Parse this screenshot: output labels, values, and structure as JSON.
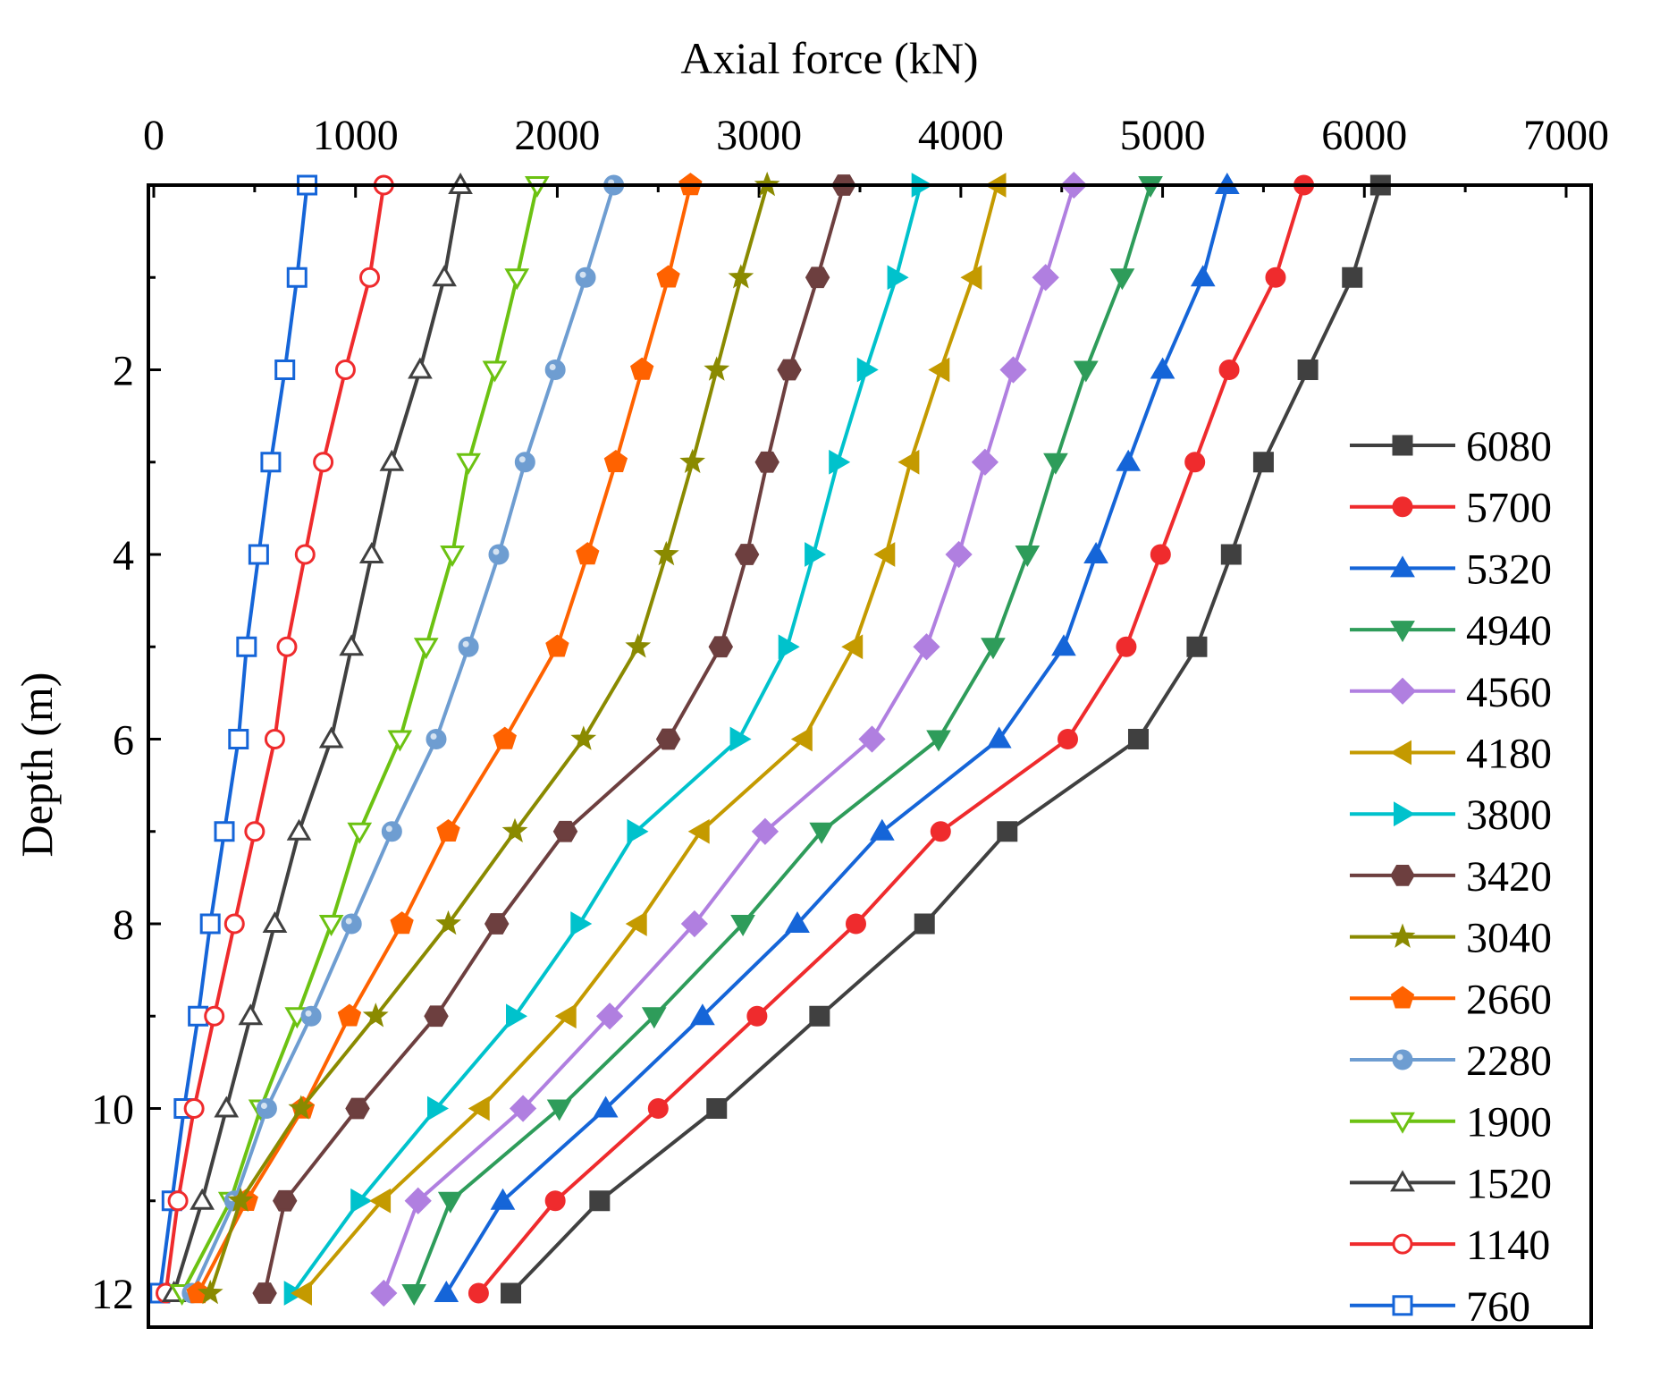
{
  "chart_data": {
    "type": "line",
    "title": "",
    "xlabel": "Axial force (kN)",
    "ylabel": "Depth (m)",
    "xlim": [
      0,
      7000
    ],
    "ylim": [
      0,
      12.5
    ],
    "x_axis_position": "top",
    "y_axis_inverted": true,
    "xticks": [
      "0",
      "1000",
      "2000",
      "3000",
      "4000",
      "5000",
      "6000",
      "7000"
    ],
    "yticks": [
      "2",
      "4",
      "6",
      "8",
      "10",
      "12"
    ],
    "ytick_values": [
      2,
      4,
      6,
      8,
      10,
      12
    ],
    "legend_position": "right",
    "depth": [
      0,
      1,
      2,
      3,
      4,
      5,
      6,
      7,
      8,
      9,
      10,
      11,
      12
    ],
    "series": [
      {
        "name": "6080",
        "color": "#404040",
        "marker": "square",
        "filled": true,
        "values": [
          6080,
          5940,
          5720,
          5500,
          5340,
          5170,
          4880,
          4230,
          3820,
          3300,
          2790,
          2210,
          1770
        ]
      },
      {
        "name": "5700",
        "color": "#ef2b2d",
        "marker": "circle",
        "filled": true,
        "values": [
          5700,
          5560,
          5330,
          5160,
          4990,
          4820,
          4530,
          3900,
          3480,
          2990,
          2500,
          1990,
          1610
        ]
      },
      {
        "name": "5320",
        "color": "#1565d8",
        "marker": "triangle-up",
        "filled": true,
        "values": [
          5320,
          5200,
          5000,
          4830,
          4670,
          4510,
          4190,
          3610,
          3190,
          2720,
          2240,
          1730,
          1450
        ]
      },
      {
        "name": "4940",
        "color": "#2e9c5a",
        "marker": "triangle-down",
        "filled": true,
        "values": [
          4940,
          4800,
          4620,
          4470,
          4330,
          4160,
          3890,
          3310,
          2920,
          2480,
          2010,
          1470,
          1290
        ]
      },
      {
        "name": "4560",
        "color": "#b07fe0",
        "marker": "diamond",
        "filled": true,
        "values": [
          4560,
          4420,
          4260,
          4120,
          3990,
          3830,
          3560,
          3030,
          2680,
          2260,
          1830,
          1310,
          1140
        ]
      },
      {
        "name": "4180",
        "color": "#c49a00",
        "marker": "triangle-left",
        "filled": true,
        "values": [
          4180,
          4060,
          3900,
          3750,
          3630,
          3470,
          3220,
          2710,
          2400,
          2050,
          1620,
          1130,
          740
        ]
      },
      {
        "name": "3800",
        "color": "#00c2cc",
        "marker": "triangle-right",
        "filled": true,
        "values": [
          3800,
          3680,
          3530,
          3390,
          3270,
          3140,
          2900,
          2390,
          2110,
          1790,
          1400,
          1020,
          690
        ]
      },
      {
        "name": "3420",
        "color": "#6d3f3f",
        "marker": "hexagon",
        "filled": true,
        "values": [
          3420,
          3290,
          3150,
          3040,
          2940,
          2810,
          2550,
          2040,
          1700,
          1400,
          1010,
          650,
          550
        ]
      },
      {
        "name": "3040",
        "color": "#8a8a00",
        "marker": "star",
        "filled": true,
        "values": [
          3040,
          2910,
          2790,
          2670,
          2540,
          2400,
          2130,
          1790,
          1460,
          1100,
          730,
          430,
          280
        ]
      },
      {
        "name": "2660",
        "color": "#ff6200",
        "marker": "pentagon",
        "filled": true,
        "values": [
          2660,
          2550,
          2420,
          2290,
          2150,
          2000,
          1740,
          1460,
          1230,
          970,
          740,
          460,
          220
        ]
      },
      {
        "name": "2280",
        "color": "#6e9dd1",
        "marker": "sphere",
        "filled": true,
        "values": [
          2280,
          2140,
          1990,
          1840,
          1710,
          1560,
          1400,
          1180,
          980,
          780,
          560,
          400,
          190
        ]
      },
      {
        "name": "1900",
        "color": "#6cc212",
        "marker": "triangle-down",
        "filled": false,
        "values": [
          1900,
          1800,
          1690,
          1560,
          1480,
          1350,
          1220,
          1020,
          880,
          710,
          530,
          380,
          140
        ]
      },
      {
        "name": "1520",
        "color": "#404040",
        "marker": "triangle-up",
        "filled": false,
        "values": [
          1520,
          1440,
          1320,
          1180,
          1080,
          980,
          880,
          720,
          600,
          480,
          360,
          240,
          100
        ]
      },
      {
        "name": "1140",
        "color": "#ef2b2d",
        "marker": "circle",
        "filled": false,
        "values": [
          1140,
          1070,
          950,
          840,
          750,
          660,
          600,
          500,
          400,
          300,
          200,
          120,
          60
        ]
      },
      {
        "name": "760",
        "color": "#1565d8",
        "marker": "square",
        "filled": false,
        "values": [
          760,
          710,
          650,
          580,
          520,
          460,
          420,
          350,
          280,
          220,
          150,
          90,
          30
        ]
      }
    ]
  }
}
